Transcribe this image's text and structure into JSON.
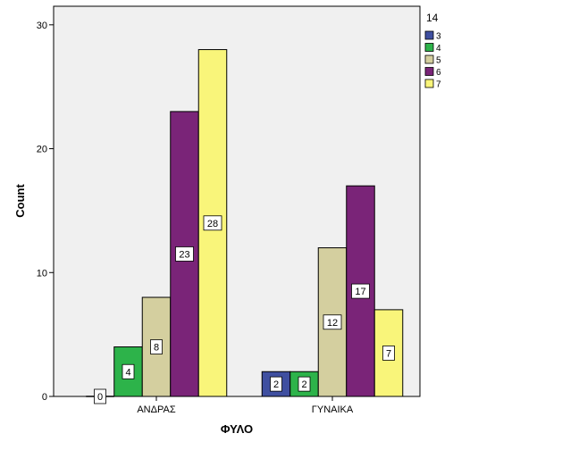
{
  "chart_data": {
    "type": "bar",
    "title": "",
    "xlabel": "ΦΥΛΟ",
    "ylabel": "Count",
    "categories": [
      "ΑΝΔΡΑΣ",
      "ΓΥΝΑΙΚΑ"
    ],
    "ylim": [
      0,
      31.5
    ],
    "yticks": [
      0,
      10,
      20,
      30
    ],
    "legend_title": "14",
    "legend_position": "right",
    "grid": false,
    "series": [
      {
        "name": "3",
        "color": "#3f4fa0",
        "values": [
          0,
          2
        ]
      },
      {
        "name": "4",
        "color": "#2db34a",
        "values": [
          4,
          2
        ]
      },
      {
        "name": "5",
        "color": "#d4cf9f",
        "values": [
          8,
          12
        ]
      },
      {
        "name": "6",
        "color": "#7a2478",
        "values": [
          23,
          17
        ]
      },
      {
        "name": "7",
        "color": "#f9f57a",
        "values": [
          28,
          7
        ]
      }
    ]
  }
}
